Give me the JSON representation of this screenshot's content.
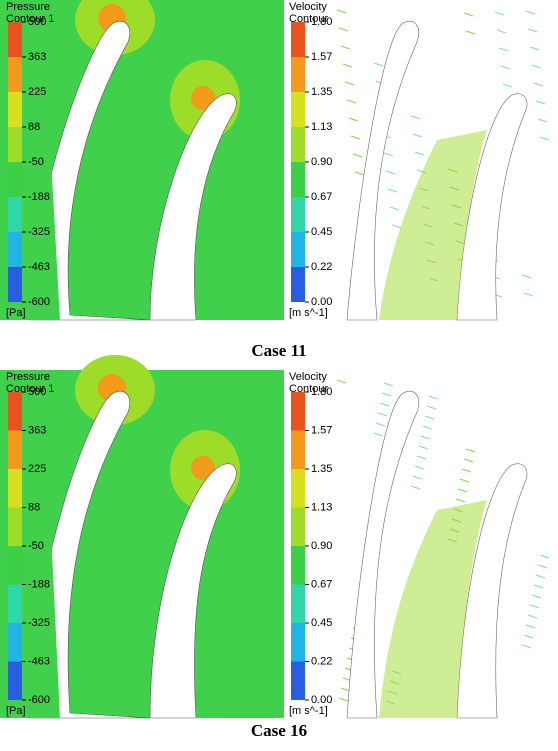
{
  "figure": {
    "panels": [
      {
        "caption": "Case 11",
        "pressure_legend": {
          "title": [
            "Pressure",
            "Contour 1"
          ],
          "labels": [
            "500",
            "363",
            "225",
            "88",
            "-50",
            "-188",
            "-325",
            "-463",
            "-600"
          ],
          "unit": "[Pa]"
        },
        "velocity_legend": {
          "title": [
            "Velocity",
            "Contour"
          ],
          "labels": [
            "1.80",
            "1.57",
            "1.35",
            "1.13",
            "0.90",
            "0.67",
            "0.45",
            "0.22",
            "0.00"
          ],
          "unit": "[m s^-1]"
        }
      },
      {
        "caption": "Case 16",
        "pressure_legend": {
          "title": [
            "Pressure",
            "Contour 1"
          ],
          "labels": [
            "500",
            "363",
            "225",
            "88",
            "-50",
            "-188",
            "-325",
            "-463",
            "-600"
          ],
          "unit": "[Pa]"
        },
        "velocity_legend": {
          "title": [
            "Velocity",
            "Contour"
          ],
          "labels": [
            "1.80",
            "1.57",
            "1.35",
            "1.13",
            "0.90",
            "0.67",
            "0.45",
            "0.22",
            "0.00"
          ],
          "unit": "[m s^-1]"
        }
      }
    ]
  }
}
